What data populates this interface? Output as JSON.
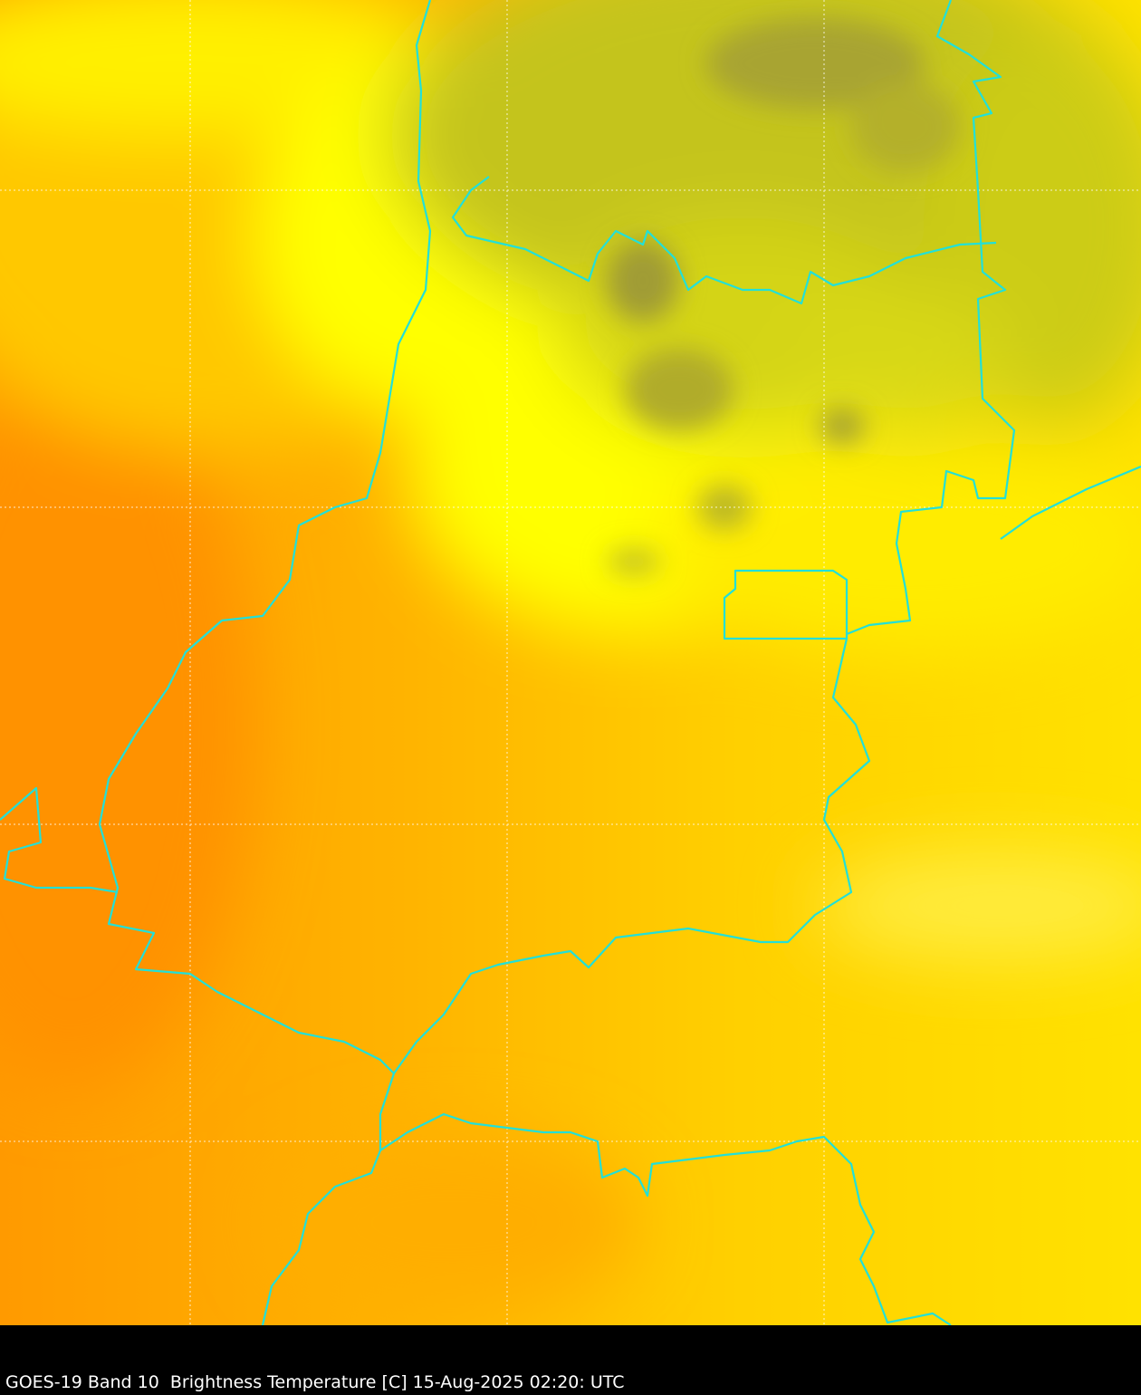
{
  "caption": "GOES-19 Band 10  Brightness Temperature [C] 15-Aug-2025 02:20: UTC",
  "colors": {
    "warm": "#ff9900",
    "mid": "#ffc400",
    "cool": "#ffff00",
    "cold": "#c8c81a",
    "coldest": "#a4a032",
    "borders": "#22e0d8",
    "grid": "#ffffff",
    "background": "#000000"
  },
  "grid": {
    "style": "dotted"
  }
}
